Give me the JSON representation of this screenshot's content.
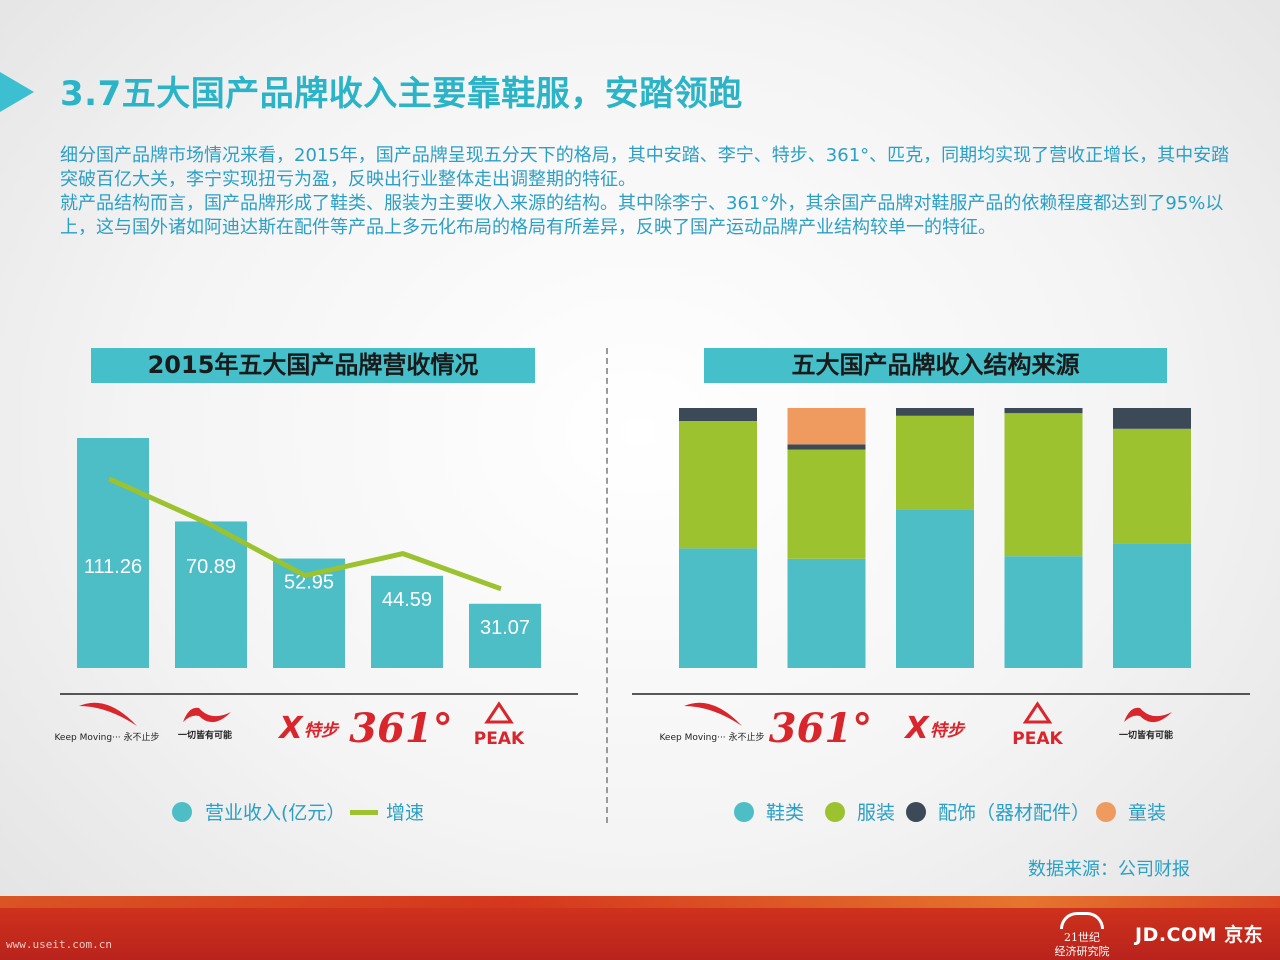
{
  "page": {
    "title": "3.7五大国产品牌收入主要靠鞋服，安踏领跑",
    "intro_paragraphs": [
      "细分国产品牌市场情况来看，2015年，国产品牌呈现五分天下的格局，其中安踏、李宁、特步、361°、匹克，同期均实现了营收正增长，其中安踏突破百亿大关，李宁实现扭亏为盈，反映出行业整体走出调整期的特征。",
      "就产品结构而言，国产品牌形成了鞋类、服装为主要收入来源的结构。其中除李宁、361°外，其余国产品牌对鞋服产品的依赖程度都达到了95%以上，这与国外诸如阿迪达斯在配件等产品上多元化布局的格局有所差异，反映了国产运动品牌产业结构较单一的特征。"
    ],
    "source": "数据来源：公司财报",
    "footer": {
      "watermark": "www.useit.com.cn",
      "logo_21": [
        "21世纪",
        "经济研究院"
      ],
      "logo_jd": "JD.COM 京东"
    }
  },
  "chart_data": [
    {
      "type": "bar",
      "title": "2015年五大国产品牌营收情况",
      "categories": [
        "安踏",
        "李宁",
        "特步",
        "361°",
        "匹克"
      ],
      "series": [
        {
          "name": "营业收入(亿元）",
          "values": [
            111.26,
            70.89,
            52.95,
            44.59,
            31.07
          ],
          "color": "#4dbdc6"
        },
        {
          "name": "增速",
          "type": "line",
          "values": [
            0.86,
            0.66,
            0.42,
            0.52,
            0.36
          ],
          "color": "#9cc22f"
        }
      ],
      "ylim": [
        0,
        120
      ],
      "grid": false,
      "legend_position": "bottom",
      "brand_logos": [
        {
          "name": "anta-logo",
          "text": "Keep Moving··· 永不止步"
        },
        {
          "name": "lining-logo",
          "text": "一切皆有可能"
        },
        {
          "name": "xtep-logo",
          "text": "特步"
        },
        {
          "name": "361-logo",
          "text": "361°"
        },
        {
          "name": "peak-logo",
          "text": "PEAK"
        }
      ]
    },
    {
      "type": "bar",
      "stacked": true,
      "title": "五大国产品牌收入结构来源",
      "categories": [
        "安踏",
        "361°",
        "特步",
        "匹克",
        "李宁"
      ],
      "series": [
        {
          "name": "鞋类",
          "values": [
            46,
            42,
            61,
            43,
            48
          ],
          "color": "#4dbdc6"
        },
        {
          "name": "服装",
          "values": [
            49,
            42,
            36,
            55,
            44
          ],
          "color": "#9cc22f"
        },
        {
          "name": "配饰（器材配件）",
          "values": [
            5,
            2,
            3,
            2,
            8
          ],
          "color": "#3c4a57"
        },
        {
          "name": "童装",
          "values": [
            0,
            14,
            0,
            0,
            0
          ],
          "color": "#ef9a5f"
        }
      ],
      "ylim": [
        0,
        100
      ],
      "grid": false,
      "legend_position": "bottom",
      "brand_logos": [
        {
          "name": "anta-logo",
          "text": "Keep Moving··· 永不止步"
        },
        {
          "name": "361-logo",
          "text": "361°"
        },
        {
          "name": "xtep-logo",
          "text": "特步"
        },
        {
          "name": "peak-logo",
          "text": "PEAK"
        },
        {
          "name": "lining-logo",
          "text": "一切皆有可能"
        }
      ]
    }
  ]
}
